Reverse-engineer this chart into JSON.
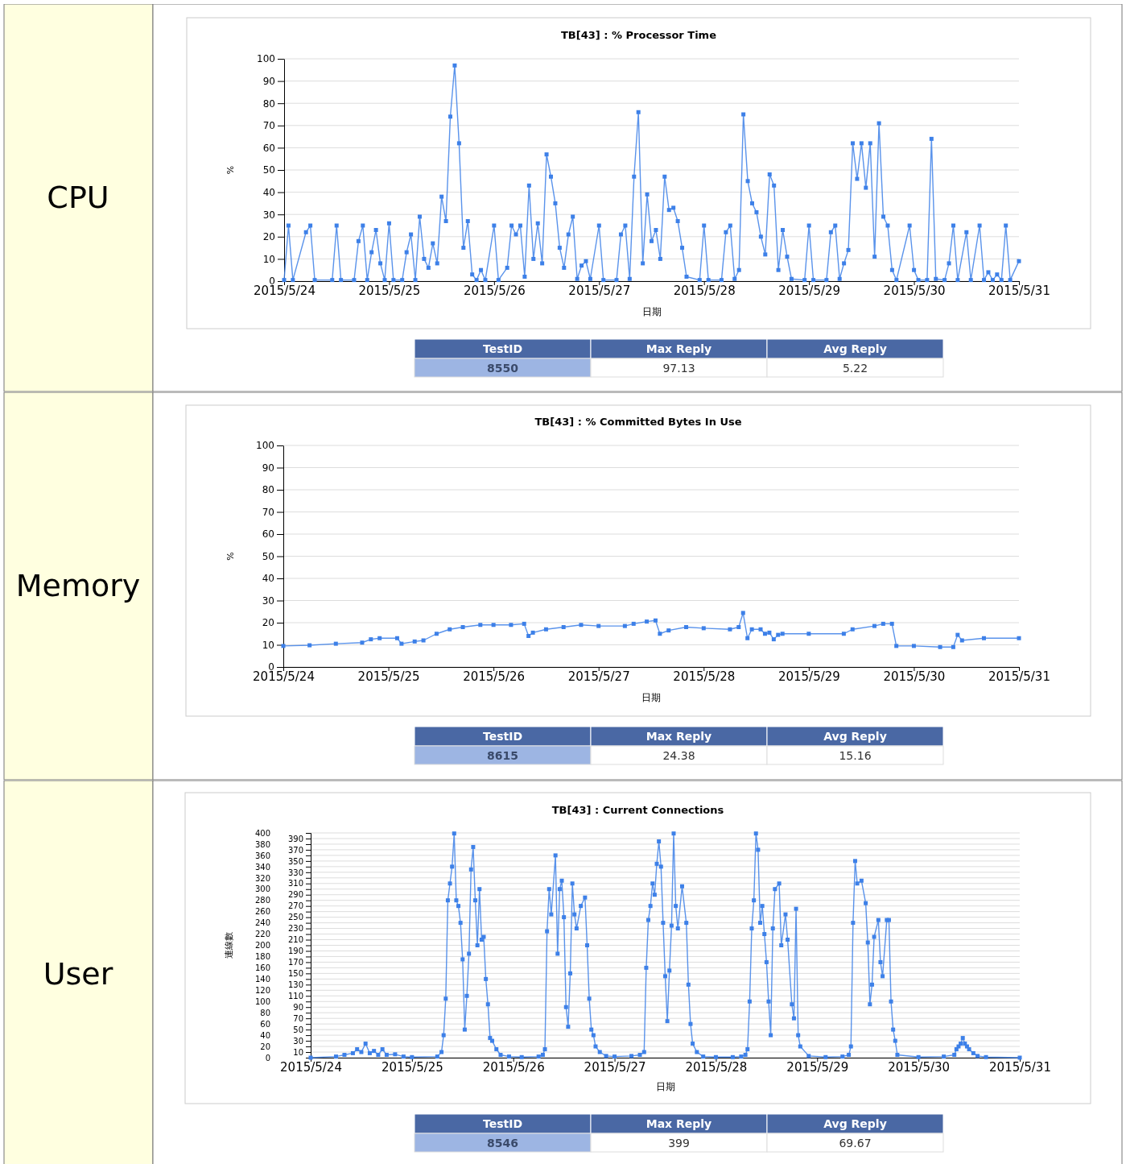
{
  "chart_data": [
    {
      "type": "line",
      "title": "TB[43] : % Processor Time",
      "xlabel": "日期",
      "ylabel": "%",
      "color": "#3d80e8",
      "marker": "square",
      "grid": "y",
      "xlim": [
        "2015-05-24",
        "2015-05-31"
      ],
      "xticks": [
        {
          "value": "2015-05-24",
          "label": "2015/5/24"
        },
        {
          "value": "2015-05-25",
          "label": "2015/5/25"
        },
        {
          "value": "2015-05-26",
          "label": "2015/5/26"
        },
        {
          "value": "2015-05-27",
          "label": "2015/5/27"
        },
        {
          "value": "2015-05-28",
          "label": "2015/5/28"
        },
        {
          "value": "2015-05-29",
          "label": "2015/5/29"
        },
        {
          "value": "2015-05-30",
          "label": "2015/5/30"
        },
        {
          "value": "2015-05-31",
          "label": "2015/5/31"
        }
      ],
      "ylim": [
        0,
        100
      ],
      "yticks": [
        0,
        10,
        20,
        30,
        40,
        50,
        60,
        70,
        80,
        90,
        100
      ],
      "x": [
        "2015-05-24T00:00",
        "2015-05-24T01:00",
        "2015-05-24T02:00",
        "2015-05-24T05:00",
        "2015-05-24T06:00",
        "2015-05-24T07:00",
        "2015-05-24T11:00",
        "2015-05-24T12:00",
        "2015-05-24T13:00",
        "2015-05-24T16:00",
        "2015-05-24T17:00",
        "2015-05-24T18:00",
        "2015-05-24T19:00",
        "2015-05-24T20:00",
        "2015-05-24T21:00",
        "2015-05-24T22:00",
        "2015-05-24T23:00",
        "2015-05-25T00:00",
        "2015-05-25T01:00",
        "2015-05-25T03:00",
        "2015-05-25T04:00",
        "2015-05-25T05:00",
        "2015-05-25T06:00",
        "2015-05-25T07:00",
        "2015-05-25T08:00",
        "2015-05-25T09:00",
        "2015-05-25T10:00",
        "2015-05-25T11:00",
        "2015-05-25T12:00",
        "2015-05-25T13:00",
        "2015-05-25T14:00",
        "2015-05-25T15:00",
        "2015-05-25T16:00",
        "2015-05-25T17:00",
        "2015-05-25T18:00",
        "2015-05-25T19:00",
        "2015-05-25T20:00",
        "2015-05-25T21:00",
        "2015-05-25T22:00",
        "2015-05-26T00:00",
        "2015-05-26T01:00",
        "2015-05-26T03:00",
        "2015-05-26T04:00",
        "2015-05-26T05:00",
        "2015-05-26T06:00",
        "2015-05-26T07:00",
        "2015-05-26T08:00",
        "2015-05-26T09:00",
        "2015-05-26T10:00",
        "2015-05-26T11:00",
        "2015-05-26T12:00",
        "2015-05-26T13:00",
        "2015-05-26T14:00",
        "2015-05-26T15:00",
        "2015-05-26T16:00",
        "2015-05-26T17:00",
        "2015-05-26T18:00",
        "2015-05-26T19:00",
        "2015-05-26T20:00",
        "2015-05-26T21:00",
        "2015-05-26T22:00",
        "2015-05-27T00:00",
        "2015-05-27T01:00",
        "2015-05-27T04:00",
        "2015-05-27T05:00",
        "2015-05-27T06:00",
        "2015-05-27T07:00",
        "2015-05-27T08:00",
        "2015-05-27T09:00",
        "2015-05-27T10:00",
        "2015-05-27T11:00",
        "2015-05-27T12:00",
        "2015-05-27T13:00",
        "2015-05-27T14:00",
        "2015-05-27T15:00",
        "2015-05-27T16:00",
        "2015-05-27T17:00",
        "2015-05-27T18:00",
        "2015-05-27T19:00",
        "2015-05-27T20:00",
        "2015-05-27T23:00",
        "2015-05-28T00:00",
        "2015-05-28T01:00",
        "2015-05-28T04:00",
        "2015-05-28T05:00",
        "2015-05-28T06:00",
        "2015-05-28T07:00",
        "2015-05-28T08:00",
        "2015-05-28T09:00",
        "2015-05-28T10:00",
        "2015-05-28T11:00",
        "2015-05-28T12:00",
        "2015-05-28T13:00",
        "2015-05-28T14:00",
        "2015-05-28T15:00",
        "2015-05-28T16:00",
        "2015-05-28T17:00",
        "2015-05-28T18:00",
        "2015-05-28T19:00",
        "2015-05-28T20:00",
        "2015-05-28T23:00",
        "2015-05-29T00:00",
        "2015-05-29T01:00",
        "2015-05-29T04:00",
        "2015-05-29T05:00",
        "2015-05-29T06:00",
        "2015-05-29T07:00",
        "2015-05-29T08:00",
        "2015-05-29T09:00",
        "2015-05-29T10:00",
        "2015-05-29T11:00",
        "2015-05-29T12:00",
        "2015-05-29T13:00",
        "2015-05-29T14:00",
        "2015-05-29T15:00",
        "2015-05-29T16:00",
        "2015-05-29T17:00",
        "2015-05-29T18:00",
        "2015-05-29T19:00",
        "2015-05-29T20:00",
        "2015-05-29T23:00",
        "2015-05-30T00:00",
        "2015-05-30T01:00",
        "2015-05-30T03:00",
        "2015-05-30T04:00",
        "2015-05-30T05:00",
        "2015-05-30T07:00",
        "2015-05-30T08:00",
        "2015-05-30T09:00",
        "2015-05-30T10:00",
        "2015-05-30T12:00",
        "2015-05-30T13:00",
        "2015-05-30T15:00",
        "2015-05-30T16:00",
        "2015-05-30T17:00",
        "2015-05-30T18:00",
        "2015-05-30T19:00",
        "2015-05-30T20:00",
        "2015-05-30T21:00",
        "2015-05-30T22:00",
        "2015-05-31T00:00"
      ],
      "values": [
        0.5,
        25,
        0.5,
        22,
        25,
        0.5,
        0.5,
        25,
        0.5,
        0.5,
        18,
        25,
        0.5,
        13,
        23,
        8,
        0.5,
        26,
        0.5,
        0.5,
        13,
        21,
        0.5,
        29,
        10,
        6,
        17,
        8,
        38,
        27,
        74,
        97,
        62,
        15,
        27,
        3,
        0.5,
        5,
        0.5,
        25,
        0.5,
        6,
        25,
        21,
        25,
        2,
        43,
        10,
        26,
        8,
        57,
        47,
        35,
        15,
        6,
        21,
        29,
        1,
        7,
        9,
        1,
        25,
        0.5,
        0.5,
        21,
        25,
        1,
        47,
        76,
        8,
        39,
        18,
        23,
        10,
        47,
        32,
        33,
        27,
        15,
        2,
        0.5,
        25,
        0.5,
        0.5,
        22,
        25,
        1,
        5,
        75,
        45,
        35,
        31,
        20,
        12,
        48,
        43,
        5,
        23,
        11,
        1,
        0.5,
        25,
        0.5,
        0.5,
        22,
        25,
        1,
        8,
        14,
        62,
        46,
        62,
        42,
        62,
        11,
        71,
        29,
        25,
        5,
        0.5,
        25,
        5,
        0.5,
        0.5,
        64,
        1,
        0.5,
        8,
        25,
        0.5,
        22,
        0.5,
        25,
        0.5,
        4,
        0.5,
        3,
        0.5,
        25,
        0.5,
        9
      ],
      "annotations": [
        "CPU",
        "TestID",
        "Max Reply",
        "Avg Reply",
        "8550",
        "97.13",
        "5.22"
      ]
    },
    {
      "type": "line",
      "title": "TB[43] : % Committed Bytes In Use",
      "xlabel": "日期",
      "ylabel": "%",
      "color": "#3d80e8",
      "marker": "square",
      "grid": "y",
      "xlim": [
        "2015-05-24",
        "2015-05-31"
      ],
      "xticks": [
        {
          "value": "2015-05-24",
          "label": "2015/5/24"
        },
        {
          "value": "2015-05-25",
          "label": "2015/5/25"
        },
        {
          "value": "2015-05-26",
          "label": "2015/5/26"
        },
        {
          "value": "2015-05-27",
          "label": "2015/5/27"
        },
        {
          "value": "2015-05-28",
          "label": "2015/5/28"
        },
        {
          "value": "2015-05-29",
          "label": "2015/5/29"
        },
        {
          "value": "2015-05-30",
          "label": "2015/5/30"
        },
        {
          "value": "2015-05-31",
          "label": "2015/5/31"
        }
      ],
      "ylim": [
        0,
        100
      ],
      "yticks": [
        0,
        10,
        20,
        30,
        40,
        50,
        60,
        70,
        80,
        90,
        100
      ],
      "x": [
        "2015-05-24T00:00",
        "2015-05-24T06:00",
        "2015-05-24T12:00",
        "2015-05-24T18:00",
        "2015-05-24T20:00",
        "2015-05-24T22:00",
        "2015-05-25T02:00",
        "2015-05-25T03:00",
        "2015-05-25T06:00",
        "2015-05-25T08:00",
        "2015-05-25T11:00",
        "2015-05-25T14:00",
        "2015-05-25T17:00",
        "2015-05-25T21:00",
        "2015-05-26T00:00",
        "2015-05-26T04:00",
        "2015-05-26T07:00",
        "2015-05-26T08:00",
        "2015-05-26T09:00",
        "2015-05-26T12:00",
        "2015-05-26T16:00",
        "2015-05-26T20:00",
        "2015-05-27T00:00",
        "2015-05-27T06:00",
        "2015-05-27T08:00",
        "2015-05-27T11:00",
        "2015-05-27T13:00",
        "2015-05-27T14:00",
        "2015-05-27T16:00",
        "2015-05-27T20:00",
        "2015-05-28T00:00",
        "2015-05-28T06:00",
        "2015-05-28T08:00",
        "2015-05-28T09:00",
        "2015-05-28T10:00",
        "2015-05-28T11:00",
        "2015-05-28T13:00",
        "2015-05-28T14:00",
        "2015-05-28T15:00",
        "2015-05-28T16:00",
        "2015-05-28T17:00",
        "2015-05-28T18:00",
        "2015-05-29T00:00",
        "2015-05-29T08:00",
        "2015-05-29T10:00",
        "2015-05-29T15:00",
        "2015-05-29T17:00",
        "2015-05-29T19:00",
        "2015-05-29T20:00",
        "2015-05-30T00:00",
        "2015-05-30T06:00",
        "2015-05-30T09:00",
        "2015-05-30T10:00",
        "2015-05-30T11:00",
        "2015-05-30T16:00",
        "2015-05-31T00:00"
      ],
      "values": [
        9.5,
        9.8,
        10.5,
        11,
        12.5,
        13,
        13,
        10.5,
        11.5,
        12,
        15,
        17,
        18,
        19,
        19,
        19,
        19.5,
        14,
        15.5,
        17,
        18,
        19,
        18.5,
        18.5,
        19.5,
        20.5,
        21,
        15,
        16.5,
        18,
        17.5,
        17,
        18,
        24.4,
        13,
        17,
        17,
        15,
        15.5,
        12.5,
        14.5,
        15,
        15,
        15,
        17,
        18.5,
        19.5,
        19.5,
        9.5,
        9.5,
        9,
        9,
        14.5,
        12,
        13,
        13
      ],
      "annotations": [
        "Memory",
        "TestID",
        "Max Reply",
        "Avg Reply",
        "8615",
        "24.38",
        "15.16"
      ]
    },
    {
      "type": "line",
      "title": "TB[43] : Current Connections",
      "xlabel": "日期",
      "ylabel": "連線數",
      "color": "#3d80e8",
      "marker": "square",
      "grid": "y",
      "xlim": [
        "2015-05-24",
        "2015-05-31"
      ],
      "xticks": [
        {
          "value": "2015-05-24",
          "label": "2015/5/24"
        },
        {
          "value": "2015-05-25",
          "label": "2015/5/25"
        },
        {
          "value": "2015-05-26",
          "label": "2015/5/26"
        },
        {
          "value": "2015-05-27",
          "label": "2015/5/27"
        },
        {
          "value": "2015-05-28",
          "label": "2015/5/28"
        },
        {
          "value": "2015-05-29",
          "label": "2015/5/29"
        },
        {
          "value": "2015-05-30",
          "label": "2015/5/30"
        },
        {
          "value": "2015-05-31",
          "label": "2015/5/31"
        }
      ],
      "ylim": [
        0,
        400
      ],
      "yticks": [
        0,
        20,
        40,
        60,
        80,
        100,
        120,
        140,
        160,
        180,
        200,
        220,
        240,
        260,
        280,
        300,
        320,
        340,
        360,
        380,
        400
      ],
      "y2lim": [
        0,
        400
      ],
      "y2ticks": [
        10,
        30,
        50,
        70,
        90,
        110,
        130,
        150,
        170,
        190,
        210,
        230,
        250,
        270,
        290,
        310,
        330,
        350,
        370,
        390
      ],
      "x": [
        "2015-05-24T00:00",
        "2015-05-24T06:00",
        "2015-05-24T08:00",
        "2015-05-24T10:00",
        "2015-05-24T11:00",
        "2015-05-24T12:00",
        "2015-05-24T13:00",
        "2015-05-24T14:00",
        "2015-05-24T15:00",
        "2015-05-24T16:00",
        "2015-05-24T17:00",
        "2015-05-24T18:00",
        "2015-05-24T20:00",
        "2015-05-24T22:00",
        "2015-05-25T00:00",
        "2015-05-25T06:00",
        "2015-05-25T07:00",
        "2015-05-25T07:30",
        "2015-05-25T08:00",
        "2015-05-25T08:30",
        "2015-05-25T09:00",
        "2015-05-25T09:30",
        "2015-05-25T10:00",
        "2015-05-25T10:30",
        "2015-05-25T11:00",
        "2015-05-25T11:30",
        "2015-05-25T12:00",
        "2015-05-25T12:30",
        "2015-05-25T13:00",
        "2015-05-25T13:30",
        "2015-05-25T14:00",
        "2015-05-25T14:30",
        "2015-05-25T15:00",
        "2015-05-25T15:30",
        "2015-05-25T16:00",
        "2015-05-25T16:30",
        "2015-05-25T17:00",
        "2015-05-25T17:30",
        "2015-05-25T18:00",
        "2015-05-25T18:30",
        "2015-05-25T19:00",
        "2015-05-25T20:00",
        "2015-05-25T21:00",
        "2015-05-25T23:00",
        "2015-05-26T02:00",
        "2015-05-26T06:00",
        "2015-05-26T07:00",
        "2015-05-26T07:30",
        "2015-05-26T08:00",
        "2015-05-26T08:30",
        "2015-05-26T09:00",
        "2015-05-26T10:00",
        "2015-05-26T10:30",
        "2015-05-26T11:00",
        "2015-05-26T11:30",
        "2015-05-26T12:00",
        "2015-05-26T12:30",
        "2015-05-26T13:00",
        "2015-05-26T13:30",
        "2015-05-26T14:00",
        "2015-05-26T14:30",
        "2015-05-26T15:00",
        "2015-05-26T16:00",
        "2015-05-26T17:00",
        "2015-05-26T17:30",
        "2015-05-26T18:00",
        "2015-05-26T18:30",
        "2015-05-26T19:00",
        "2015-05-26T19:30",
        "2015-05-26T20:30",
        "2015-05-26T22:00",
        "2015-05-27T00:00",
        "2015-05-27T04:00",
        "2015-05-27T06:00",
        "2015-05-27T07:00",
        "2015-05-27T07:30",
        "2015-05-27T08:00",
        "2015-05-27T08:30",
        "2015-05-27T09:00",
        "2015-05-27T09:30",
        "2015-05-27T10:00",
        "2015-05-27T10:30",
        "2015-05-27T11:00",
        "2015-05-27T11:30",
        "2015-05-27T12:00",
        "2015-05-27T12:30",
        "2015-05-27T13:00",
        "2015-05-27T13:30",
        "2015-05-27T14:00",
        "2015-05-27T14:30",
        "2015-05-27T15:00",
        "2015-05-27T16:00",
        "2015-05-27T17:00",
        "2015-05-27T17:30",
        "2015-05-27T18:00",
        "2015-05-27T18:30",
        "2015-05-27T19:30",
        "2015-05-27T21:00",
        "2015-05-28T00:00",
        "2015-05-28T04:00",
        "2015-05-28T06:00",
        "2015-05-28T07:00",
        "2015-05-28T07:30",
        "2015-05-28T08:00",
        "2015-05-28T08:30",
        "2015-05-28T09:00",
        "2015-05-28T09:30",
        "2015-05-28T10:00",
        "2015-05-28T10:30",
        "2015-05-28T11:00",
        "2015-05-28T11:30",
        "2015-05-28T12:00",
        "2015-05-28T12:30",
        "2015-05-28T13:00",
        "2015-05-28T13:30",
        "2015-05-28T14:00",
        "2015-05-28T15:00",
        "2015-05-28T15:30",
        "2015-05-28T16:30",
        "2015-05-28T17:00",
        "2015-05-28T18:00",
        "2015-05-28T18:30",
        "2015-05-28T19:00",
        "2015-05-28T19:30",
        "2015-05-28T20:00",
        "2015-05-28T22:00",
        "2015-05-29T02:00",
        "2015-05-29T06:00",
        "2015-05-29T07:30",
        "2015-05-29T08:00",
        "2015-05-29T08:30",
        "2015-05-29T09:00",
        "2015-05-29T09:30",
        "2015-05-29T10:30",
        "2015-05-29T11:30",
        "2015-05-29T12:00",
        "2015-05-29T12:30",
        "2015-05-29T13:00",
        "2015-05-29T13:30",
        "2015-05-29T14:30",
        "2015-05-29T15:00",
        "2015-05-29T15:30",
        "2015-05-29T16:30",
        "2015-05-29T17:00",
        "2015-05-29T17:30",
        "2015-05-29T18:00",
        "2015-05-29T18:30",
        "2015-05-29T19:00",
        "2015-05-30T00:00",
        "2015-05-30T06:00",
        "2015-05-30T08:30",
        "2015-05-30T09:00",
        "2015-05-30T09:30",
        "2015-05-30T10:00",
        "2015-05-30T10:30",
        "2015-05-30T11:00",
        "2015-05-30T11:30",
        "2015-05-30T12:00",
        "2015-05-30T13:00",
        "2015-05-30T14:00",
        "2015-05-30T16:00",
        "2015-05-31T00:00"
      ],
      "values": [
        0,
        2,
        5,
        8,
        15,
        10,
        25,
        8,
        12,
        5,
        15,
        5,
        6,
        2,
        1,
        2,
        10,
        40,
        105,
        280,
        310,
        340,
        399,
        280,
        270,
        240,
        175,
        50,
        110,
        185,
        335,
        375,
        280,
        200,
        300,
        210,
        215,
        140,
        95,
        35,
        30,
        15,
        5,
        2,
        1,
        2,
        5,
        15,
        225,
        300,
        255,
        360,
        185,
        300,
        315,
        250,
        90,
        55,
        150,
        310,
        255,
        230,
        270,
        285,
        200,
        105,
        50,
        40,
        20,
        10,
        3,
        2,
        3,
        5,
        10,
        160,
        245,
        270,
        310,
        290,
        345,
        385,
        340,
        240,
        145,
        65,
        155,
        235,
        399,
        270,
        230,
        305,
        240,
        130,
        60,
        25,
        10,
        2,
        1,
        1,
        2,
        5,
        15,
        100,
        230,
        280,
        399,
        370,
        240,
        270,
        220,
        170,
        100,
        40,
        230,
        300,
        310,
        200,
        255,
        210,
        95,
        70,
        265,
        40,
        20,
        3,
        1,
        2,
        5,
        20,
        240,
        350,
        310,
        315,
        275,
        205,
        95,
        130,
        215,
        245,
        170,
        145,
        245,
        245,
        100,
        50,
        30,
        5,
        1,
        2,
        5,
        15,
        20,
        25,
        35,
        25,
        20,
        15,
        8,
        3,
        1,
        0
      ],
      "annotations": [
        "User",
        "TestID",
        "Max Reply",
        "Avg Reply",
        "8546",
        "399",
        "69.67"
      ]
    }
  ]
}
